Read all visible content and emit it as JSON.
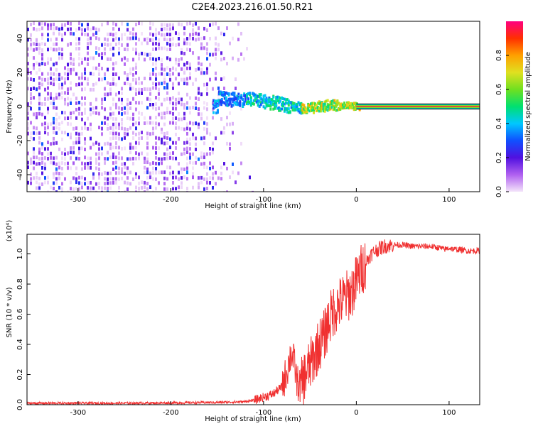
{
  "title": "C2E4.2023.216.01.50.R21",
  "chart_data": [
    {
      "type": "heatmap",
      "xlabel": "Height of straight line (km)",
      "ylabel": "Frequency (Hz)",
      "xlim": [
        -355,
        133
      ],
      "ylim": [
        -50,
        50
      ],
      "xticks": [
        -300,
        -200,
        -100,
        0,
        100
      ],
      "yticks": [
        -40,
        -20,
        0,
        20,
        40
      ],
      "colorbar": {
        "label": "Normalized spectral amplitude",
        "range": [
          0,
          1
        ],
        "ticks": [
          "0.0",
          "0.2",
          "0.4",
          "0.6",
          "0.8"
        ],
        "colors": [
          "#f4e4fa",
          "#b060f0",
          "#5010e0",
          "#1050ff",
          "#00c8ff",
          "#00e070",
          "#70e020",
          "#e0e020",
          "#ffa000",
          "#ff3000",
          "#ff0080"
        ]
      },
      "signal_track": [
        [
          -150,
          5
        ],
        [
          -140,
          4
        ],
        [
          -130,
          4
        ],
        [
          -120,
          4
        ],
        [
          -110,
          4
        ],
        [
          -100,
          3
        ],
        [
          -90,
          2
        ],
        [
          -80,
          1
        ],
        [
          -70,
          0
        ],
        [
          -60,
          -1
        ],
        [
          -55,
          -2
        ],
        [
          -50,
          -1
        ],
        [
          -45,
          -1
        ],
        [
          -40,
          0
        ],
        [
          -35,
          0
        ],
        [
          -30,
          1
        ],
        [
          -25,
          1
        ],
        [
          -20,
          0
        ],
        [
          -15,
          1
        ],
        [
          -10,
          1
        ],
        [
          -5,
          0
        ],
        [
          0,
          0
        ],
        [
          50,
          0
        ],
        [
          100,
          0
        ],
        [
          133,
          0
        ]
      ],
      "noise_region": [
        -355,
        -130
      ],
      "grid": false
    },
    {
      "type": "line",
      "xlabel": "Height of straight line (km)",
      "ylabel": "SNR (10 * v/v)",
      "y_multiplier": "(x10⁴)",
      "xlim": [
        -355,
        133
      ],
      "ylim": [
        0,
        1.13
      ],
      "xticks": [
        -300,
        -200,
        -100,
        0,
        100
      ],
      "yticks": [
        "0.0",
        "0.2",
        "0.4",
        "0.6",
        "0.8",
        "1.0"
      ],
      "series": [
        {
          "color": "#f03030",
          "x": [
            -355,
            -300,
            -250,
            -200,
            -150,
            -120,
            -110,
            -100,
            -90,
            -80,
            -75,
            -70,
            -67,
            -64,
            -60,
            -55,
            -50,
            -45,
            -40,
            -35,
            -30,
            -25,
            -20,
            -15,
            -10,
            -5,
            0,
            5,
            10,
            15,
            20,
            30,
            40,
            50,
            60,
            70,
            80,
            90,
            95,
            100,
            105,
            110,
            120,
            133
          ],
          "y": [
            0.01,
            0.01,
            0.01,
            0.012,
            0.015,
            0.02,
            0.03,
            0.05,
            0.07,
            0.12,
            0.22,
            0.35,
            0.28,
            0.15,
            0.12,
            0.2,
            0.26,
            0.33,
            0.4,
            0.45,
            0.55,
            0.62,
            0.66,
            0.69,
            0.72,
            0.75,
            0.82,
            0.89,
            0.94,
            0.99,
            1.02,
            1.05,
            1.06,
            1.06,
            1.05,
            1.05,
            1.05,
            1.04,
            1.03,
            1.04,
            1.03,
            1.03,
            1.02,
            1.02
          ]
        }
      ],
      "grid": false
    }
  ]
}
